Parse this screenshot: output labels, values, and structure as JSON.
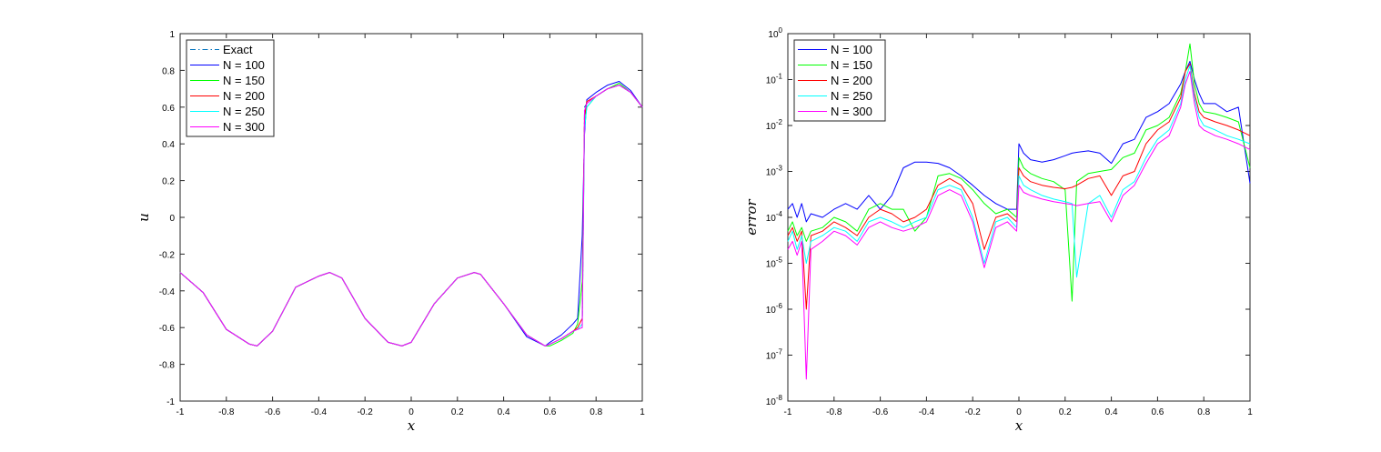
{
  "chart_data": [
    {
      "type": "line",
      "title": "",
      "xlabel": "x",
      "ylabel": "u",
      "xlim": [
        -1,
        1
      ],
      "ylim": [
        -1,
        1
      ],
      "yscale": "linear",
      "xticks": [
        "-1",
        "-0.8",
        "-0.6",
        "-0.4",
        "-0.2",
        "0",
        "0.2",
        "0.4",
        "0.6",
        "0.8",
        "1"
      ],
      "yticks": [
        "-1",
        "-0.8",
        "-0.6",
        "-0.4",
        "-0.2",
        "0",
        "0.2",
        "0.4",
        "0.6",
        "0.8",
        "1"
      ],
      "legend_position": "top-left",
      "grid": false,
      "x": [
        -1.0,
        -0.9,
        -0.8,
        -0.7,
        -0.667,
        -0.6,
        -0.5,
        -0.4,
        -0.353,
        -0.3,
        -0.2,
        -0.1,
        -0.04,
        0.0,
        0.1,
        0.2,
        0.273,
        0.3,
        0.4,
        0.5,
        0.58,
        0.6,
        0.65,
        0.7,
        0.72,
        0.74,
        0.75,
        0.76,
        0.8,
        0.85,
        0.9,
        0.95,
        1.0
      ],
      "series": [
        {
          "name": "Exact",
          "color": "#0072BD",
          "dash": "dashdot",
          "values": [
            -0.3,
            -0.41,
            -0.61,
            -0.69,
            -0.7,
            -0.62,
            -0.38,
            -0.32,
            -0.3,
            -0.33,
            -0.55,
            -0.68,
            -0.7,
            -0.68,
            -0.47,
            -0.33,
            -0.3,
            -0.31,
            -0.47,
            -0.64,
            -0.7,
            -0.69,
            -0.66,
            -0.62,
            -0.61,
            -0.6,
            0.6,
            0.62,
            0.66,
            0.7,
            0.72,
            0.68,
            0.6
          ]
        },
        {
          "name": "N = 100",
          "color": "#0000FF",
          "values": [
            -0.3,
            -0.41,
            -0.61,
            -0.69,
            -0.7,
            -0.62,
            -0.38,
            -0.32,
            -0.3,
            -0.33,
            -0.55,
            -0.68,
            -0.7,
            -0.68,
            -0.47,
            -0.33,
            -0.3,
            -0.31,
            -0.47,
            -0.65,
            -0.7,
            -0.68,
            -0.64,
            -0.58,
            -0.55,
            -0.1,
            0.45,
            0.64,
            0.68,
            0.72,
            0.74,
            0.69,
            0.6
          ]
        },
        {
          "name": "N = 150",
          "color": "#00FF00",
          "values": [
            -0.3,
            -0.41,
            -0.61,
            -0.69,
            -0.7,
            -0.62,
            -0.38,
            -0.32,
            -0.3,
            -0.33,
            -0.55,
            -0.68,
            -0.7,
            -0.68,
            -0.47,
            -0.33,
            -0.3,
            -0.31,
            -0.47,
            -0.64,
            -0.7,
            -0.7,
            -0.67,
            -0.63,
            -0.58,
            -0.35,
            0.5,
            0.6,
            0.66,
            0.7,
            0.73,
            0.68,
            0.6
          ]
        },
        {
          "name": "N = 200",
          "color": "#FF0000",
          "values": [
            -0.3,
            -0.41,
            -0.61,
            -0.69,
            -0.7,
            -0.62,
            -0.38,
            -0.32,
            -0.3,
            -0.33,
            -0.55,
            -0.68,
            -0.7,
            -0.68,
            -0.47,
            -0.33,
            -0.3,
            -0.31,
            -0.47,
            -0.64,
            -0.7,
            -0.69,
            -0.66,
            -0.62,
            -0.6,
            -0.55,
            0.55,
            0.63,
            0.66,
            0.7,
            0.72,
            0.68,
            0.6
          ]
        },
        {
          "name": "N = 250",
          "color": "#00FFFF",
          "values": [
            -0.3,
            -0.41,
            -0.61,
            -0.69,
            -0.7,
            -0.62,
            -0.38,
            -0.32,
            -0.3,
            -0.33,
            -0.55,
            -0.68,
            -0.7,
            -0.68,
            -0.47,
            -0.33,
            -0.3,
            -0.31,
            -0.47,
            -0.64,
            -0.7,
            -0.69,
            -0.66,
            -0.62,
            -0.61,
            -0.58,
            0.48,
            0.6,
            0.66,
            0.7,
            0.72,
            0.68,
            0.6
          ]
        },
        {
          "name": "N = 300",
          "color": "#FF00FF",
          "values": [
            -0.3,
            -0.41,
            -0.61,
            -0.69,
            -0.7,
            -0.62,
            -0.38,
            -0.32,
            -0.3,
            -0.33,
            -0.55,
            -0.68,
            -0.7,
            -0.68,
            -0.47,
            -0.33,
            -0.3,
            -0.31,
            -0.47,
            -0.64,
            -0.7,
            -0.69,
            -0.66,
            -0.62,
            -0.61,
            -0.6,
            0.58,
            0.62,
            0.66,
            0.7,
            0.72,
            0.68,
            0.6
          ]
        }
      ]
    },
    {
      "type": "line",
      "title": "",
      "xlabel": "x",
      "ylabel": "error",
      "xlim": [
        -1,
        1
      ],
      "ylim": [
        1e-08,
        1
      ],
      "yscale": "log",
      "xticks": [
        "-1",
        "-0.8",
        "-0.6",
        "-0.4",
        "-0.2",
        "0",
        "0.2",
        "0.4",
        "0.6",
        "0.8",
        "1"
      ],
      "yticks": [
        {
          "base": "10",
          "exp": "-8",
          "value": 1e-08
        },
        {
          "base": "10",
          "exp": "-7",
          "value": 1e-07
        },
        {
          "base": "10",
          "exp": "-6",
          "value": 1e-06
        },
        {
          "base": "10",
          "exp": "-5",
          "value": 1e-05
        },
        {
          "base": "10",
          "exp": "-4",
          "value": 0.0001
        },
        {
          "base": "10",
          "exp": "-3",
          "value": 0.001
        },
        {
          "base": "10",
          "exp": "-2",
          "value": 0.01
        },
        {
          "base": "10",
          "exp": "-1",
          "value": 0.1
        },
        {
          "base": "10",
          "exp": "0",
          "value": 1
        }
      ],
      "legend_position": "top-left",
      "grid": false,
      "x": [
        -1.0,
        -0.98,
        -0.96,
        -0.94,
        -0.92,
        -0.9,
        -0.85,
        -0.8,
        -0.75,
        -0.7,
        -0.65,
        -0.6,
        -0.55,
        -0.5,
        -0.45,
        -0.4,
        -0.35,
        -0.3,
        -0.25,
        -0.2,
        -0.15,
        -0.1,
        -0.05,
        -0.01,
        0.0,
        0.02,
        0.05,
        0.1,
        0.15,
        0.2,
        0.23,
        0.25,
        0.3,
        0.35,
        0.4,
        0.45,
        0.5,
        0.55,
        0.6,
        0.65,
        0.7,
        0.72,
        0.74,
        0.76,
        0.78,
        0.8,
        0.85,
        0.9,
        0.95,
        1.0
      ],
      "series": [
        {
          "name": "N = 100",
          "color": "#0000FF",
          "values": [
            0.00015,
            0.0002,
            0.0001,
            0.0002,
            8e-05,
            0.00012,
            0.0001,
            0.00015,
            0.0002,
            0.00015,
            0.0003,
            0.00015,
            0.0003,
            0.0012,
            0.0016,
            0.0016,
            0.0015,
            0.0012,
            0.0008,
            0.0005,
            0.0003,
            0.0002,
            0.00015,
            0.00015,
            0.004,
            0.0025,
            0.0018,
            0.0016,
            0.0018,
            0.0022,
            0.0025,
            0.0026,
            0.0028,
            0.0025,
            0.0015,
            0.004,
            0.005,
            0.015,
            0.02,
            0.03,
            0.08,
            0.15,
            0.25,
            0.1,
            0.05,
            0.03,
            0.03,
            0.02,
            0.025,
            0.00055
          ]
        },
        {
          "name": "N = 150",
          "color": "#00FF00",
          "values": [
            5e-05,
            8e-05,
            4e-05,
            6e-05,
            3e-05,
            5e-05,
            6e-05,
            0.0001,
            8e-05,
            5e-05,
            0.00015,
            0.0002,
            0.00015,
            0.00015,
            5e-05,
            0.0001,
            0.0008,
            0.0009,
            0.0007,
            0.0004,
            0.0002,
            0.00012,
            0.00015,
            0.0001,
            0.002,
            0.0012,
            0.0009,
            0.0007,
            0.0006,
            0.0004,
            1.5e-06,
            0.0006,
            0.0009,
            0.001,
            0.0011,
            0.002,
            0.0025,
            0.008,
            0.01,
            0.015,
            0.05,
            0.15,
            0.6,
            0.08,
            0.03,
            0.02,
            0.018,
            0.015,
            0.012,
            0.0012
          ]
        },
        {
          "name": "N = 200",
          "color": "#FF0000",
          "values": [
            4e-05,
            6e-05,
            3e-05,
            5e-05,
            1e-06,
            4e-05,
            5e-05,
            8e-05,
            6e-05,
            4e-05,
            0.0001,
            0.00015,
            0.00012,
            8e-05,
            0.0001,
            0.00015,
            0.0005,
            0.0007,
            0.0005,
            0.0002,
            2e-05,
            0.0001,
            0.00012,
            8e-05,
            0.0012,
            0.0008,
            0.0006,
            0.0005,
            0.00045,
            0.00042,
            0.00045,
            0.0005,
            0.0007,
            0.0008,
            0.0003,
            0.0008,
            0.001,
            0.004,
            0.008,
            0.012,
            0.04,
            0.15,
            0.22,
            0.05,
            0.02,
            0.015,
            0.012,
            0.01,
            0.008,
            0.006
          ]
        },
        {
          "name": "N = 250",
          "color": "#00FFFF",
          "values": [
            3e-05,
            5e-05,
            2e-05,
            4e-05,
            1e-05,
            3e-05,
            4e-05,
            6e-05,
            5e-05,
            3e-05,
            8e-05,
            0.0001,
            8e-05,
            6e-05,
            8e-05,
            0.0001,
            0.0004,
            0.0005,
            0.0004,
            0.0001,
            1e-05,
            8e-05,
            0.0001,
            6e-05,
            0.0008,
            0.0005,
            0.0004,
            0.0003,
            0.00025,
            0.00022,
            0.0002,
            5e-06,
            0.0002,
            0.0003,
            0.0001,
            0.0004,
            0.0006,
            0.002,
            0.005,
            0.008,
            0.03,
            0.1,
            0.2,
            0.04,
            0.015,
            0.01,
            0.008,
            0.006,
            0.005,
            0.004
          ]
        },
        {
          "name": "N = 300",
          "color": "#FF00FF",
          "values": [
            2e-05,
            3e-05,
            1.5e-05,
            3e-05,
            3e-08,
            2e-05,
            3e-05,
            5e-05,
            4e-05,
            2.5e-05,
            6e-05,
            8e-05,
            6e-05,
            5e-05,
            6e-05,
            8e-05,
            0.0003,
            0.0004,
            0.0003,
            8e-05,
            8e-06,
            6e-05,
            8e-05,
            5e-05,
            0.0005,
            0.00035,
            0.0003,
            0.00025,
            0.00022,
            0.0002,
            0.00019,
            0.00018,
            0.0002,
            0.00022,
            8e-05,
            0.0003,
            0.0005,
            0.0015,
            0.004,
            0.006,
            0.025,
            0.08,
            0.15,
            0.03,
            0.01,
            0.008,
            0.006,
            0.005,
            0.004,
            0.003
          ]
        }
      ]
    }
  ]
}
